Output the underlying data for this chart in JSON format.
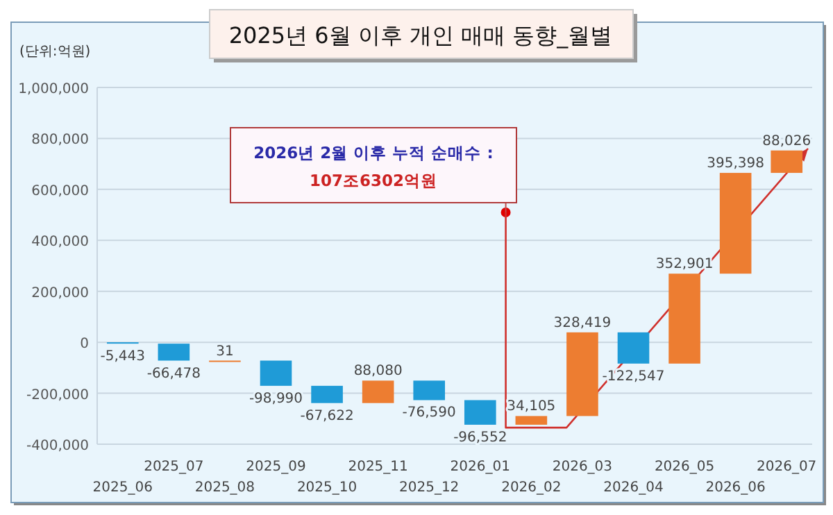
{
  "chart_data": {
    "type": "bar",
    "title": "2025년 6월 이후 개인 매매 동향_월별",
    "ylabel": "(단위:억원)",
    "annotations": [
      "2026년 2월 이후 누적 순매수 :",
      "107조6302억원"
    ],
    "categories": [
      "2025_06",
      "2025_07",
      "2025_08",
      "2025_09",
      "2025_10",
      "2025_11",
      "2025_12",
      "2026_01",
      "2026_02",
      "2026_03",
      "2026_04",
      "2026_05",
      "2026_06",
      "2026_07"
    ],
    "values": [
      -5443,
      -66478,
      31,
      -98990,
      -67622,
      88080,
      -76590,
      -96552,
      34105,
      328419,
      -122547,
      352901,
      395398,
      88026
    ],
    "base": [
      0,
      -5443,
      -71921,
      -71890,
      -170880,
      -238502,
      -150422,
      -227012,
      -323564,
      -289459,
      38960,
      -83587,
      269314,
      664712
    ],
    "colors": [
      "#1f9bd7",
      "#1f9bd7",
      "#ed7d31",
      "#1f9bd7",
      "#1f9bd7",
      "#ed7d31",
      "#1f9bd7",
      "#1f9bd7",
      "#ed7d31",
      "#ed7d31",
      "#1f9bd7",
      "#ed7d31",
      "#ed7d31",
      "#ed7d31"
    ],
    "ylim": [
      -400000,
      1000000
    ],
    "yticks": [
      {
        "value": -400000,
        "label": "-400,000"
      },
      {
        "value": -200000,
        "label": "-200,000"
      },
      0,
      {
        "value": 200000,
        "label": "200,000"
      },
      {
        "value": 400000,
        "label": "400,000"
      },
      {
        "value": 600000,
        "label": "600,000"
      },
      {
        "value": 800000,
        "label": "800,000"
      },
      {
        "value": 1000000,
        "label": "1,000,000"
      }
    ],
    "value_labels": [
      "-5,443",
      "-66,478",
      "31",
      "-98,990",
      "-67,622",
      "88,080",
      "-76,590",
      "-96,552",
      "34,105",
      "328,419",
      "-122,547",
      "352,901",
      "395,398",
      "88,026"
    ],
    "grid": "y"
  }
}
